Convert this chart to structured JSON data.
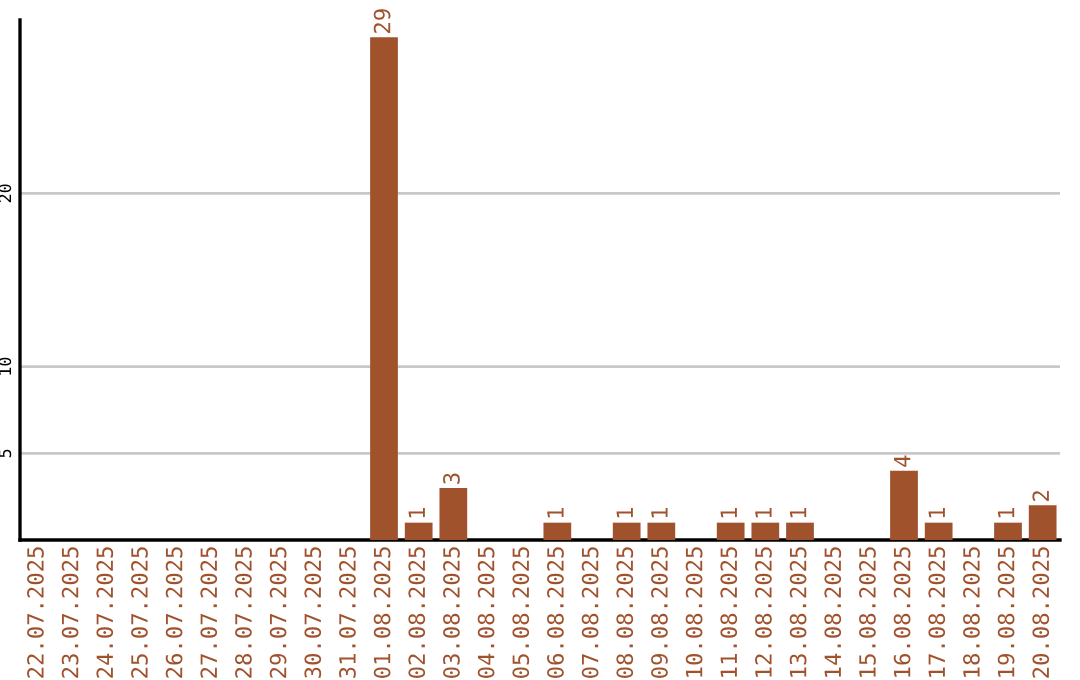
{
  "chart_data": {
    "type": "bar",
    "categories": [
      "22.07.2025",
      "23.07.2025",
      "24.07.2025",
      "25.07.2025",
      "26.07.2025",
      "27.07.2025",
      "28.07.2025",
      "29.07.2025",
      "30.07.2025",
      "31.07.2025",
      "01.08.2025",
      "02.08.2025",
      "03.08.2025",
      "04.08.2025",
      "05.08.2025",
      "06.08.2025",
      "07.08.2025",
      "08.08.2025",
      "09.08.2025",
      "10.08.2025",
      "11.08.2025",
      "12.08.2025",
      "13.08.2025",
      "14.08.2025",
      "15.08.2025",
      "16.08.2025",
      "17.08.2025",
      "18.08.2025",
      "19.08.2025",
      "20.08.2025"
    ],
    "values": [
      0,
      0,
      0,
      0,
      0,
      0,
      0,
      0,
      0,
      0,
      29,
      1,
      3,
      0,
      0,
      1,
      0,
      1,
      1,
      0,
      1,
      1,
      1,
      0,
      0,
      4,
      1,
      0,
      1,
      2
    ],
    "value_labels": [
      null,
      null,
      null,
      null,
      null,
      null,
      null,
      null,
      null,
      null,
      "29",
      "1",
      "3",
      null,
      null,
      "1",
      null,
      "1",
      "1",
      null,
      "1",
      "1",
      "1",
      null,
      null,
      "4",
      "1",
      null,
      "1",
      "2"
    ],
    "color": "#a0522d",
    "ylim": [
      0,
      30
    ],
    "yticks": [
      5,
      10,
      20
    ],
    "grid": "y"
  }
}
